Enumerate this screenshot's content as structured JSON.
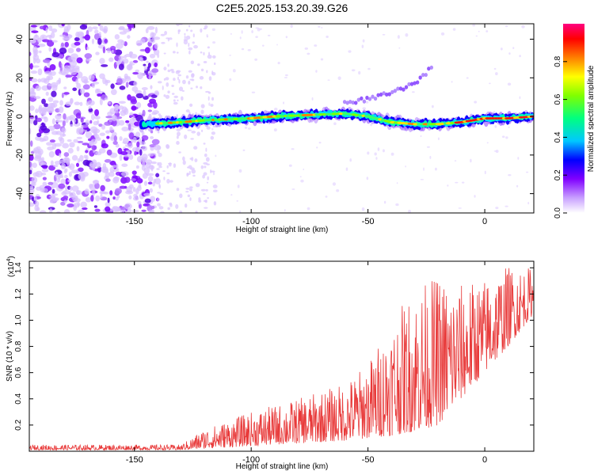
{
  "title": "C2E5.2025.153.20.39.G26",
  "chart_data": [
    {
      "type": "heatmap",
      "name": "spectrogram",
      "xlabel": "Height of straight line (km)",
      "ylabel": "Frequency (Hz)",
      "xlim": [
        -195,
        21
      ],
      "ylim": [
        -50,
        48
      ],
      "xticks": [
        -150,
        -100,
        -50,
        0
      ],
      "yticks": [
        -40,
        -20,
        0,
        20,
        40
      ],
      "xtick_labels": [
        "-150",
        "-100",
        "-50",
        "0"
      ],
      "ytick_labels": [
        "-40",
        "-20",
        "0",
        "20",
        "40"
      ],
      "ridge": [
        {
          "x": -145,
          "y": -4
        },
        {
          "x": -130,
          "y": -3
        },
        {
          "x": -120,
          "y": -2
        },
        {
          "x": -110,
          "y": -1.5
        },
        {
          "x": -100,
          "y": -1
        },
        {
          "x": -90,
          "y": 0
        },
        {
          "x": -80,
          "y": 0.5
        },
        {
          "x": -70,
          "y": 1
        },
        {
          "x": -60,
          "y": 1.5
        },
        {
          "x": -50,
          "y": 0
        },
        {
          "x": -40,
          "y": -3
        },
        {
          "x": -30,
          "y": -4
        },
        {
          "x": -20,
          "y": -4
        },
        {
          "x": -10,
          "y": -3
        },
        {
          "x": 0,
          "y": -1
        },
        {
          "x": 10,
          "y": -1
        },
        {
          "x": 21,
          "y": 0
        }
      ],
      "harmonic": [
        {
          "x": -60,
          "y": 7
        },
        {
          "x": -50,
          "y": 9
        },
        {
          "x": -40,
          "y": 12
        },
        {
          "x": -30,
          "y": 17
        },
        {
          "x": -22,
          "y": 26
        }
      ]
    },
    {
      "type": "colorbar",
      "name": "colorbar",
      "label": "Normalized spectral amplitude",
      "range": [
        0,
        1
      ],
      "ticks": [
        0.0,
        0.2,
        0.4,
        0.6,
        0.8
      ],
      "tick_labels": [
        "0.0",
        "0.2",
        "0.4",
        "0.6",
        "0.8"
      ],
      "colors": [
        "#ffffff",
        "#c8a0ff",
        "#8000ff",
        "#0000ff",
        "#00c8ff",
        "#00ff80",
        "#80ff00",
        "#ffff00",
        "#ff8000",
        "#ff0000",
        "#ff0080"
      ]
    },
    {
      "type": "line",
      "name": "snr",
      "xlabel": "Height of straight line (km)",
      "ylabel": "SNR (10 * v/v)",
      "multiplier": "(x10",
      "multiplier_exp": "4",
      "multiplier_close": ")",
      "xlim": [
        -195,
        21
      ],
      "ylim": [
        0,
        1.45
      ],
      "xticks": [
        -150,
        -100,
        -50,
        0
      ],
      "xtick_labels": [
        "-150",
        "-100",
        "-50",
        "0"
      ],
      "yticks": [
        0.2,
        0.4,
        0.6,
        0.8,
        1.0,
        1.2,
        1.4
      ],
      "ytick_labels": [
        "0.2",
        "0.4",
        "0.6",
        "0.8",
        "1.0",
        "1.2",
        "1.4"
      ],
      "color": "#e83a3a",
      "envelope": [
        {
          "x": -195,
          "lo": 0.01,
          "hi": 0.05
        },
        {
          "x": -130,
          "lo": 0.01,
          "hi": 0.05
        },
        {
          "x": -120,
          "lo": 0.02,
          "hi": 0.17
        },
        {
          "x": -100,
          "lo": 0.04,
          "hi": 0.3
        },
        {
          "x": -80,
          "lo": 0.06,
          "hi": 0.4
        },
        {
          "x": -60,
          "lo": 0.08,
          "hi": 0.52
        },
        {
          "x": -50,
          "lo": 0.1,
          "hi": 0.68
        },
        {
          "x": -40,
          "lo": 0.12,
          "hi": 1.0
        },
        {
          "x": -30,
          "lo": 0.15,
          "hi": 1.25
        },
        {
          "x": -20,
          "lo": 0.2,
          "hi": 1.35
        },
        {
          "x": -10,
          "lo": 0.4,
          "hi": 1.28
        },
        {
          "x": 0,
          "lo": 0.6,
          "hi": 1.32
        },
        {
          "x": 10,
          "lo": 0.8,
          "hi": 1.42
        },
        {
          "x": 21,
          "lo": 1.05,
          "hi": 1.4
        }
      ]
    }
  ]
}
